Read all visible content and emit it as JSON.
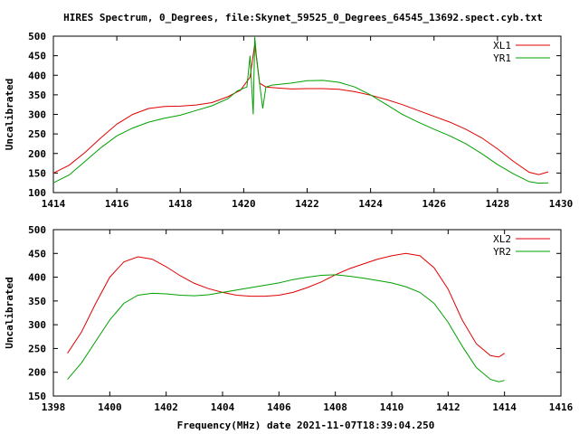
{
  "title": "HIRES Spectrum, 0_Degrees, file:Skynet_59525_0_Degrees_64545_13692.spect.cyb.txt",
  "xlabel": "Frequency(MHz) date 2021-11-07T18:39:04.250",
  "chart_data": [
    {
      "type": "line",
      "ylabel": "Uncalibrated",
      "xlim": [
        1414,
        1430
      ],
      "ylim": [
        100,
        500
      ],
      "xticks": [
        1414,
        1416,
        1418,
        1420,
        1422,
        1424,
        1426,
        1428,
        1430
      ],
      "yticks": [
        100,
        150,
        200,
        250,
        300,
        350,
        400,
        450,
        500
      ],
      "legend_position": "top-right",
      "series": [
        {
          "name": "XL1",
          "color": "#e00000",
          "x": [
            1414.0,
            1414.5,
            1415.0,
            1415.5,
            1416.0,
            1416.5,
            1417.0,
            1417.5,
            1418.0,
            1418.5,
            1419.0,
            1419.5,
            1419.9,
            1420.2,
            1420.35,
            1420.5,
            1420.7,
            1421.0,
            1421.5,
            1422.0,
            1422.5,
            1423.0,
            1423.5,
            1424.0,
            1424.5,
            1425.0,
            1425.5,
            1426.0,
            1426.5,
            1427.0,
            1427.5,
            1428.0,
            1428.5,
            1429.0,
            1429.3,
            1429.6
          ],
          "y": [
            150,
            170,
            203,
            240,
            275,
            300,
            315,
            320,
            321,
            324,
            330,
            345,
            362,
            395,
            480,
            380,
            370,
            368,
            365,
            366,
            366,
            364,
            358,
            349,
            338,
            325,
            310,
            295,
            280,
            262,
            240,
            212,
            180,
            152,
            146,
            153
          ]
        },
        {
          "name": "YR1",
          "color": "#00a000",
          "x": [
            1414.0,
            1414.5,
            1415.0,
            1415.5,
            1416.0,
            1416.5,
            1417.0,
            1417.5,
            1418.0,
            1418.5,
            1419.0,
            1419.5,
            1419.8,
            1420.1,
            1420.2,
            1420.3,
            1420.35,
            1420.4,
            1420.5,
            1420.6,
            1420.7,
            1420.9,
            1421.5,
            1422.0,
            1422.5,
            1423.0,
            1423.5,
            1424.0,
            1424.5,
            1425.0,
            1425.5,
            1426.0,
            1426.5,
            1427.0,
            1427.5,
            1428.0,
            1428.5,
            1429.0,
            1429.3,
            1429.6
          ],
          "y": [
            125,
            145,
            180,
            215,
            245,
            265,
            280,
            290,
            298,
            310,
            322,
            340,
            360,
            370,
            450,
            300,
            498,
            450,
            380,
            315,
            370,
            375,
            380,
            386,
            387,
            382,
            370,
            350,
            325,
            300,
            280,
            262,
            245,
            225,
            200,
            172,
            148,
            128,
            124,
            125
          ]
        }
      ]
    },
    {
      "type": "line",
      "ylabel": "Uncalibrated",
      "xlim": [
        1398,
        1416
      ],
      "ylim": [
        150,
        500
      ],
      "xticks": [
        1398,
        1400,
        1402,
        1404,
        1406,
        1408,
        1410,
        1412,
        1414,
        1416
      ],
      "yticks": [
        150,
        200,
        250,
        300,
        350,
        400,
        450,
        500
      ],
      "legend_position": "top-right",
      "series": [
        {
          "name": "XL2",
          "color": "#e00000",
          "x": [
            1398.5,
            1399.0,
            1399.5,
            1400.0,
            1400.5,
            1401.0,
            1401.5,
            1402.0,
            1402.5,
            1403.0,
            1403.5,
            1404.0,
            1404.5,
            1405.0,
            1405.5,
            1406.0,
            1406.5,
            1407.0,
            1407.5,
            1408.0,
            1408.5,
            1409.0,
            1409.5,
            1410.0,
            1410.5,
            1411.0,
            1411.5,
            1412.0,
            1412.5,
            1413.0,
            1413.5,
            1413.8,
            1414.0
          ],
          "y": [
            240,
            285,
            345,
            400,
            432,
            443,
            438,
            422,
            403,
            387,
            376,
            368,
            362,
            360,
            360,
            362,
            368,
            378,
            390,
            405,
            418,
            428,
            438,
            445,
            450,
            445,
            420,
            375,
            310,
            260,
            235,
            232,
            240
          ]
        },
        {
          "name": "YR2",
          "color": "#00a000",
          "x": [
            1398.5,
            1399.0,
            1399.5,
            1400.0,
            1400.5,
            1401.0,
            1401.5,
            1402.0,
            1402.5,
            1403.0,
            1403.5,
            1404.0,
            1404.5,
            1405.0,
            1405.5,
            1406.0,
            1406.5,
            1407.0,
            1407.5,
            1408.0,
            1408.5,
            1409.0,
            1409.5,
            1410.0,
            1410.5,
            1411.0,
            1411.5,
            1412.0,
            1412.5,
            1413.0,
            1413.5,
            1413.8,
            1414.0
          ],
          "y": [
            185,
            220,
            265,
            310,
            345,
            362,
            366,
            365,
            362,
            361,
            363,
            368,
            373,
            378,
            383,
            388,
            395,
            400,
            404,
            405,
            402,
            398,
            393,
            388,
            380,
            368,
            345,
            305,
            255,
            210,
            185,
            180,
            183
          ]
        }
      ]
    }
  ]
}
